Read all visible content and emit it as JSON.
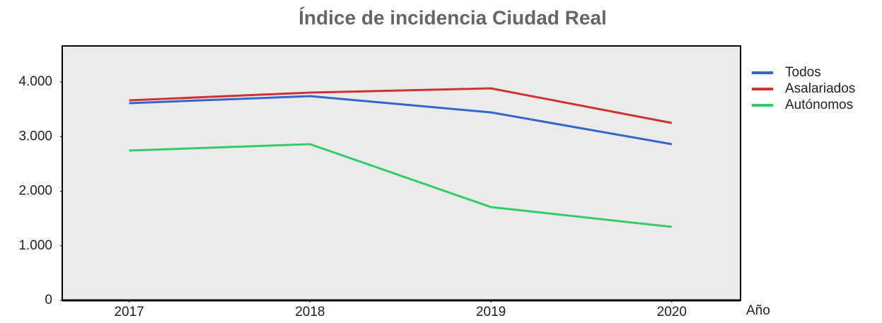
{
  "chart_data": {
    "type": "line",
    "title": "Índice de incidencia Ciudad Real",
    "x_label": "Año",
    "x": [
      2017,
      2018,
      2019,
      2020
    ],
    "series": [
      {
        "name": "Todos",
        "color": "#3366cc",
        "values": [
          3612,
          3741,
          3443,
          2861
        ]
      },
      {
        "name": "Asalariados",
        "color": "#cc3333",
        "values": [
          3663,
          3806,
          3883,
          3249
        ]
      },
      {
        "name": "Autónomos",
        "color": "#33cc66",
        "values": [
          2744,
          2861,
          1709,
          1346
        ]
      }
    ],
    "xlim": [
      2016.63,
      2020.38
    ],
    "xticks": [
      2017,
      2018,
      2019,
      2020
    ],
    "ylim": [
      0,
      4660
    ],
    "yticks": [
      0,
      {
        "value": 1000,
        "label": "1.000"
      },
      {
        "value": 2000,
        "label": "2.000"
      },
      {
        "value": 3000,
        "label": "3.000"
      },
      {
        "value": 4000,
        "label": "4.000"
      }
    ],
    "grid": false,
    "legend": "right"
  }
}
